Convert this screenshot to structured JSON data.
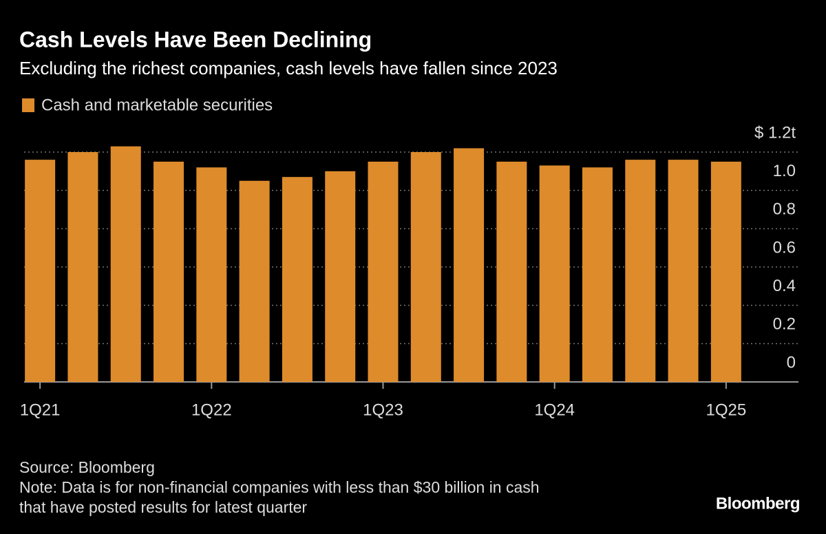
{
  "chart_data": {
    "type": "bar",
    "title": "Cash Levels Have Been Declining",
    "subtitle": "Excluding the richest companies, cash levels have fallen since 2023",
    "series": [
      {
        "name": "Cash and marketable securities",
        "color": "#de8b2b",
        "values": [
          1.16,
          1.2,
          1.23,
          1.15,
          1.12,
          1.05,
          1.07,
          1.1,
          1.15,
          1.2,
          1.22,
          1.15,
          1.13,
          1.12,
          1.16,
          1.16,
          1.15
        ]
      }
    ],
    "categories": [
      "1Q21",
      null,
      null,
      null,
      "1Q22",
      null,
      null,
      null,
      "1Q23",
      null,
      null,
      null,
      "1Q24",
      null,
      null,
      null,
      "1Q25"
    ],
    "ylim": [
      0,
      1.2
    ],
    "yticks": [
      0,
      0.2,
      0.4,
      0.6,
      0.8,
      {
        "value": 1,
        "label": "1.0"
      },
      {
        "value": 1.2,
        "label": "$ 1.2t"
      }
    ],
    "grid": true,
    "source": "Source: Bloomberg",
    "note": [
      "Note: Data is for non-financial companies with less than $30 billion in cash",
      "that have posted results for latest quarter"
    ],
    "logo": "Bloomberg"
  }
}
